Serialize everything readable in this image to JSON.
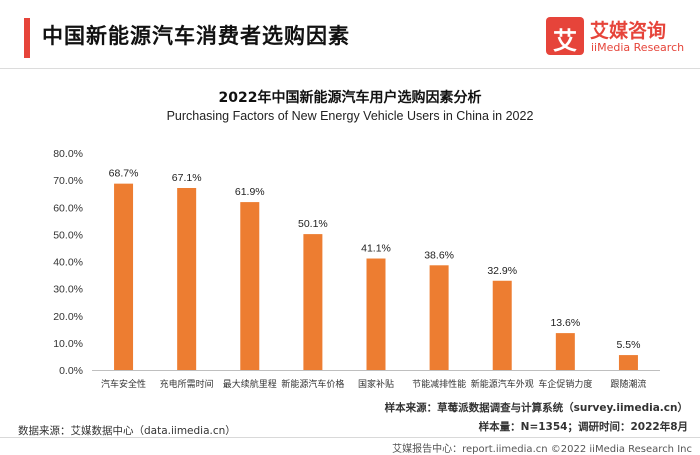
{
  "header": {
    "title": "中国新能源汽车消费者选购因素",
    "logo_mark": "艾",
    "logo_cn": "艾媒咨询",
    "logo_en": "iiMedia Research"
  },
  "colors": {
    "accent": "#e6443a",
    "bar": "#ed7d31"
  },
  "chart_data": {
    "type": "bar",
    "title": "2022年中国新能源汽车用户选购因素分析",
    "subtitle": "Purchasing Factors of New Energy Vehicle Users in China in 2022",
    "categories": [
      "汽车安全性",
      "充电所需时间",
      "最大续航里程",
      "新能源汽车价格",
      "国家补贴",
      "节能减排性能",
      "新能源汽车外观",
      "车企促销力度",
      "跟随潮流"
    ],
    "values": [
      68.7,
      67.1,
      61.9,
      50.1,
      41.1,
      38.6,
      32.9,
      13.6,
      5.5
    ],
    "value_labels": [
      "68.7%",
      "67.1%",
      "61.9%",
      "50.1%",
      "41.1%",
      "38.6%",
      "32.9%",
      "13.6%",
      "5.5%"
    ],
    "y_ticks": [
      0,
      10,
      20,
      30,
      40,
      50,
      60,
      70,
      80
    ],
    "y_tick_labels": [
      "0.0%",
      "10.0%",
      "20.0%",
      "30.0%",
      "40.0%",
      "50.0%",
      "60.0%",
      "70.0%",
      "80.0%"
    ],
    "ylim": [
      0,
      80
    ],
    "xlabel": "",
    "ylabel": "",
    "grid": false,
    "legend": "none"
  },
  "footer": {
    "sample_source": "样本来源：草莓派数据调查与计算系统（survey.iimedia.cn）",
    "sample_size": "样本量：N=1354；调研时间：2022年8月",
    "data_source": "数据来源：艾媒数据中心（data.iimedia.cn）",
    "copyright": "艾媒报告中心：report.iimedia.cn  ©2022  iiMedia Research  Inc"
  }
}
